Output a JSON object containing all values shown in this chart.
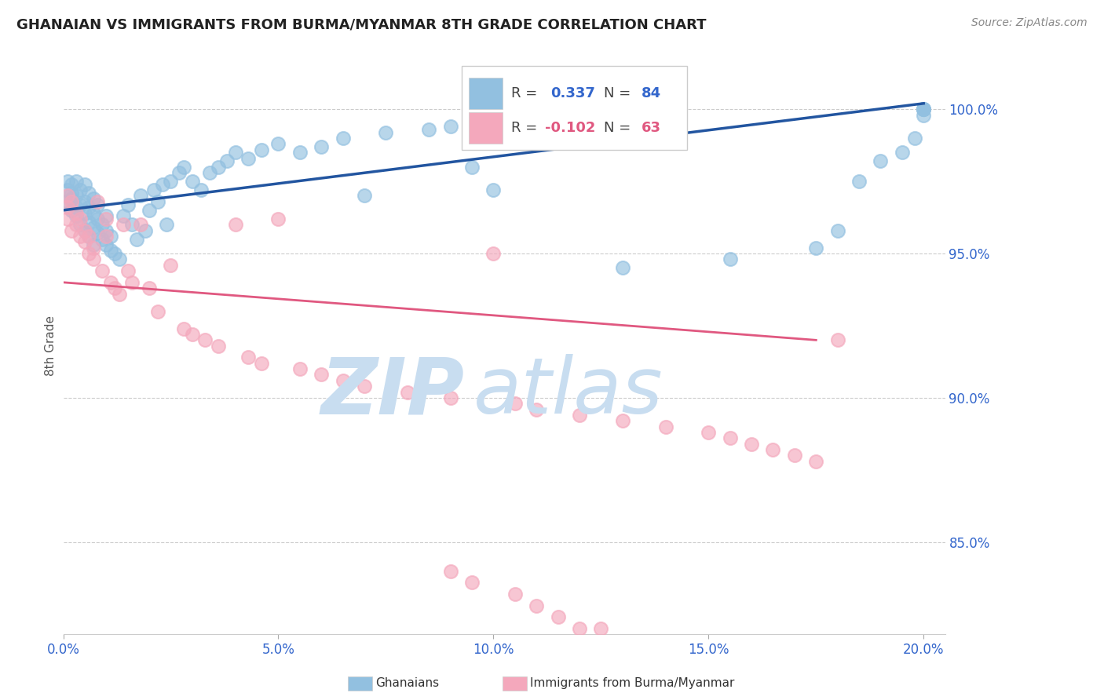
{
  "title": "GHANAIAN VS IMMIGRANTS FROM BURMA/MYANMAR 8TH GRADE CORRELATION CHART",
  "source": "Source: ZipAtlas.com",
  "ylabel": "8th Grade",
  "ytick_vals": [
    1.0,
    0.95,
    0.9,
    0.85
  ],
  "ytick_labels": [
    "100.0%",
    "95.0%",
    "90.0%",
    "85.0%"
  ],
  "xtick_vals": [
    0.0,
    0.05,
    0.1,
    0.15,
    0.2
  ],
  "xtick_labels": [
    "0.0%",
    "5.0%",
    "10.0%",
    "15.0%",
    "20.0%"
  ],
  "xlim": [
    0.0,
    0.205
  ],
  "ylim": [
    0.818,
    1.018
  ],
  "blue_color": "#92c0e0",
  "pink_color": "#f4a8bc",
  "blue_line_color": "#2255a0",
  "pink_line_color": "#e05880",
  "blue_line": [
    0.0,
    0.965,
    0.2,
    1.002
  ],
  "pink_line": [
    0.0,
    0.94,
    0.175,
    0.92
  ],
  "watermark_zip_color": "#c8ddf0",
  "watermark_atlas_color": "#c8ddf0",
  "legend_blue_r": "0.337",
  "legend_blue_n": "84",
  "legend_pink_r": "-0.102",
  "legend_pink_n": "63",
  "blue_x": [
    0.001,
    0.001,
    0.001,
    0.002,
    0.002,
    0.002,
    0.002,
    0.003,
    0.003,
    0.003,
    0.003,
    0.004,
    0.004,
    0.004,
    0.005,
    0.005,
    0.005,
    0.005,
    0.006,
    0.006,
    0.006,
    0.006,
    0.007,
    0.007,
    0.007,
    0.007,
    0.008,
    0.008,
    0.008,
    0.009,
    0.009,
    0.01,
    0.01,
    0.01,
    0.011,
    0.011,
    0.012,
    0.013,
    0.014,
    0.015,
    0.016,
    0.017,
    0.018,
    0.019,
    0.02,
    0.021,
    0.022,
    0.023,
    0.024,
    0.025,
    0.027,
    0.028,
    0.03,
    0.032,
    0.034,
    0.036,
    0.038,
    0.04,
    0.043,
    0.046,
    0.05,
    0.055,
    0.06,
    0.065,
    0.07,
    0.075,
    0.085,
    0.09,
    0.095,
    0.1,
    0.115,
    0.13,
    0.155,
    0.175,
    0.18,
    0.185,
    0.19,
    0.195,
    0.198,
    0.2,
    0.2,
    0.2,
    0.2,
    0.2
  ],
  "blue_y": [
    0.972,
    0.968,
    0.975,
    0.969,
    0.974,
    0.965,
    0.971,
    0.966,
    0.97,
    0.975,
    0.963,
    0.967,
    0.972,
    0.96,
    0.964,
    0.968,
    0.974,
    0.958,
    0.961,
    0.966,
    0.971,
    0.956,
    0.959,
    0.964,
    0.969,
    0.953,
    0.957,
    0.962,
    0.967,
    0.955,
    0.96,
    0.953,
    0.958,
    0.963,
    0.951,
    0.956,
    0.95,
    0.948,
    0.963,
    0.967,
    0.96,
    0.955,
    0.97,
    0.958,
    0.965,
    0.972,
    0.968,
    0.974,
    0.96,
    0.975,
    0.978,
    0.98,
    0.975,
    0.972,
    0.978,
    0.98,
    0.982,
    0.985,
    0.983,
    0.986,
    0.988,
    0.985,
    0.987,
    0.99,
    0.97,
    0.992,
    0.993,
    0.994,
    0.98,
    0.972,
    0.992,
    0.945,
    0.948,
    0.952,
    0.958,
    0.975,
    0.982,
    0.985,
    0.99,
    0.998,
    1.0,
    1.0,
    1.0,
    1.0
  ],
  "pink_x": [
    0.001,
    0.001,
    0.001,
    0.002,
    0.002,
    0.003,
    0.003,
    0.004,
    0.004,
    0.005,
    0.005,
    0.006,
    0.006,
    0.007,
    0.007,
    0.008,
    0.009,
    0.01,
    0.01,
    0.011,
    0.012,
    0.013,
    0.014,
    0.015,
    0.016,
    0.018,
    0.02,
    0.022,
    0.025,
    0.028,
    0.03,
    0.033,
    0.036,
    0.04,
    0.043,
    0.046,
    0.05,
    0.055,
    0.06,
    0.065,
    0.07,
    0.08,
    0.09,
    0.1,
    0.105,
    0.11,
    0.12,
    0.13,
    0.14,
    0.15,
    0.155,
    0.16,
    0.165,
    0.17,
    0.175,
    0.18,
    0.09,
    0.095,
    0.105,
    0.11,
    0.115,
    0.12,
    0.125
  ],
  "pink_y": [
    0.97,
    0.966,
    0.962,
    0.968,
    0.958,
    0.964,
    0.96,
    0.956,
    0.962,
    0.958,
    0.954,
    0.95,
    0.956,
    0.952,
    0.948,
    0.968,
    0.944,
    0.962,
    0.956,
    0.94,
    0.938,
    0.936,
    0.96,
    0.944,
    0.94,
    0.96,
    0.938,
    0.93,
    0.946,
    0.924,
    0.922,
    0.92,
    0.918,
    0.96,
    0.914,
    0.912,
    0.962,
    0.91,
    0.908,
    0.906,
    0.904,
    0.902,
    0.9,
    0.95,
    0.898,
    0.896,
    0.894,
    0.892,
    0.89,
    0.888,
    0.886,
    0.884,
    0.882,
    0.88,
    0.878,
    0.92,
    0.84,
    0.836,
    0.832,
    0.828,
    0.824,
    0.82,
    0.82
  ]
}
